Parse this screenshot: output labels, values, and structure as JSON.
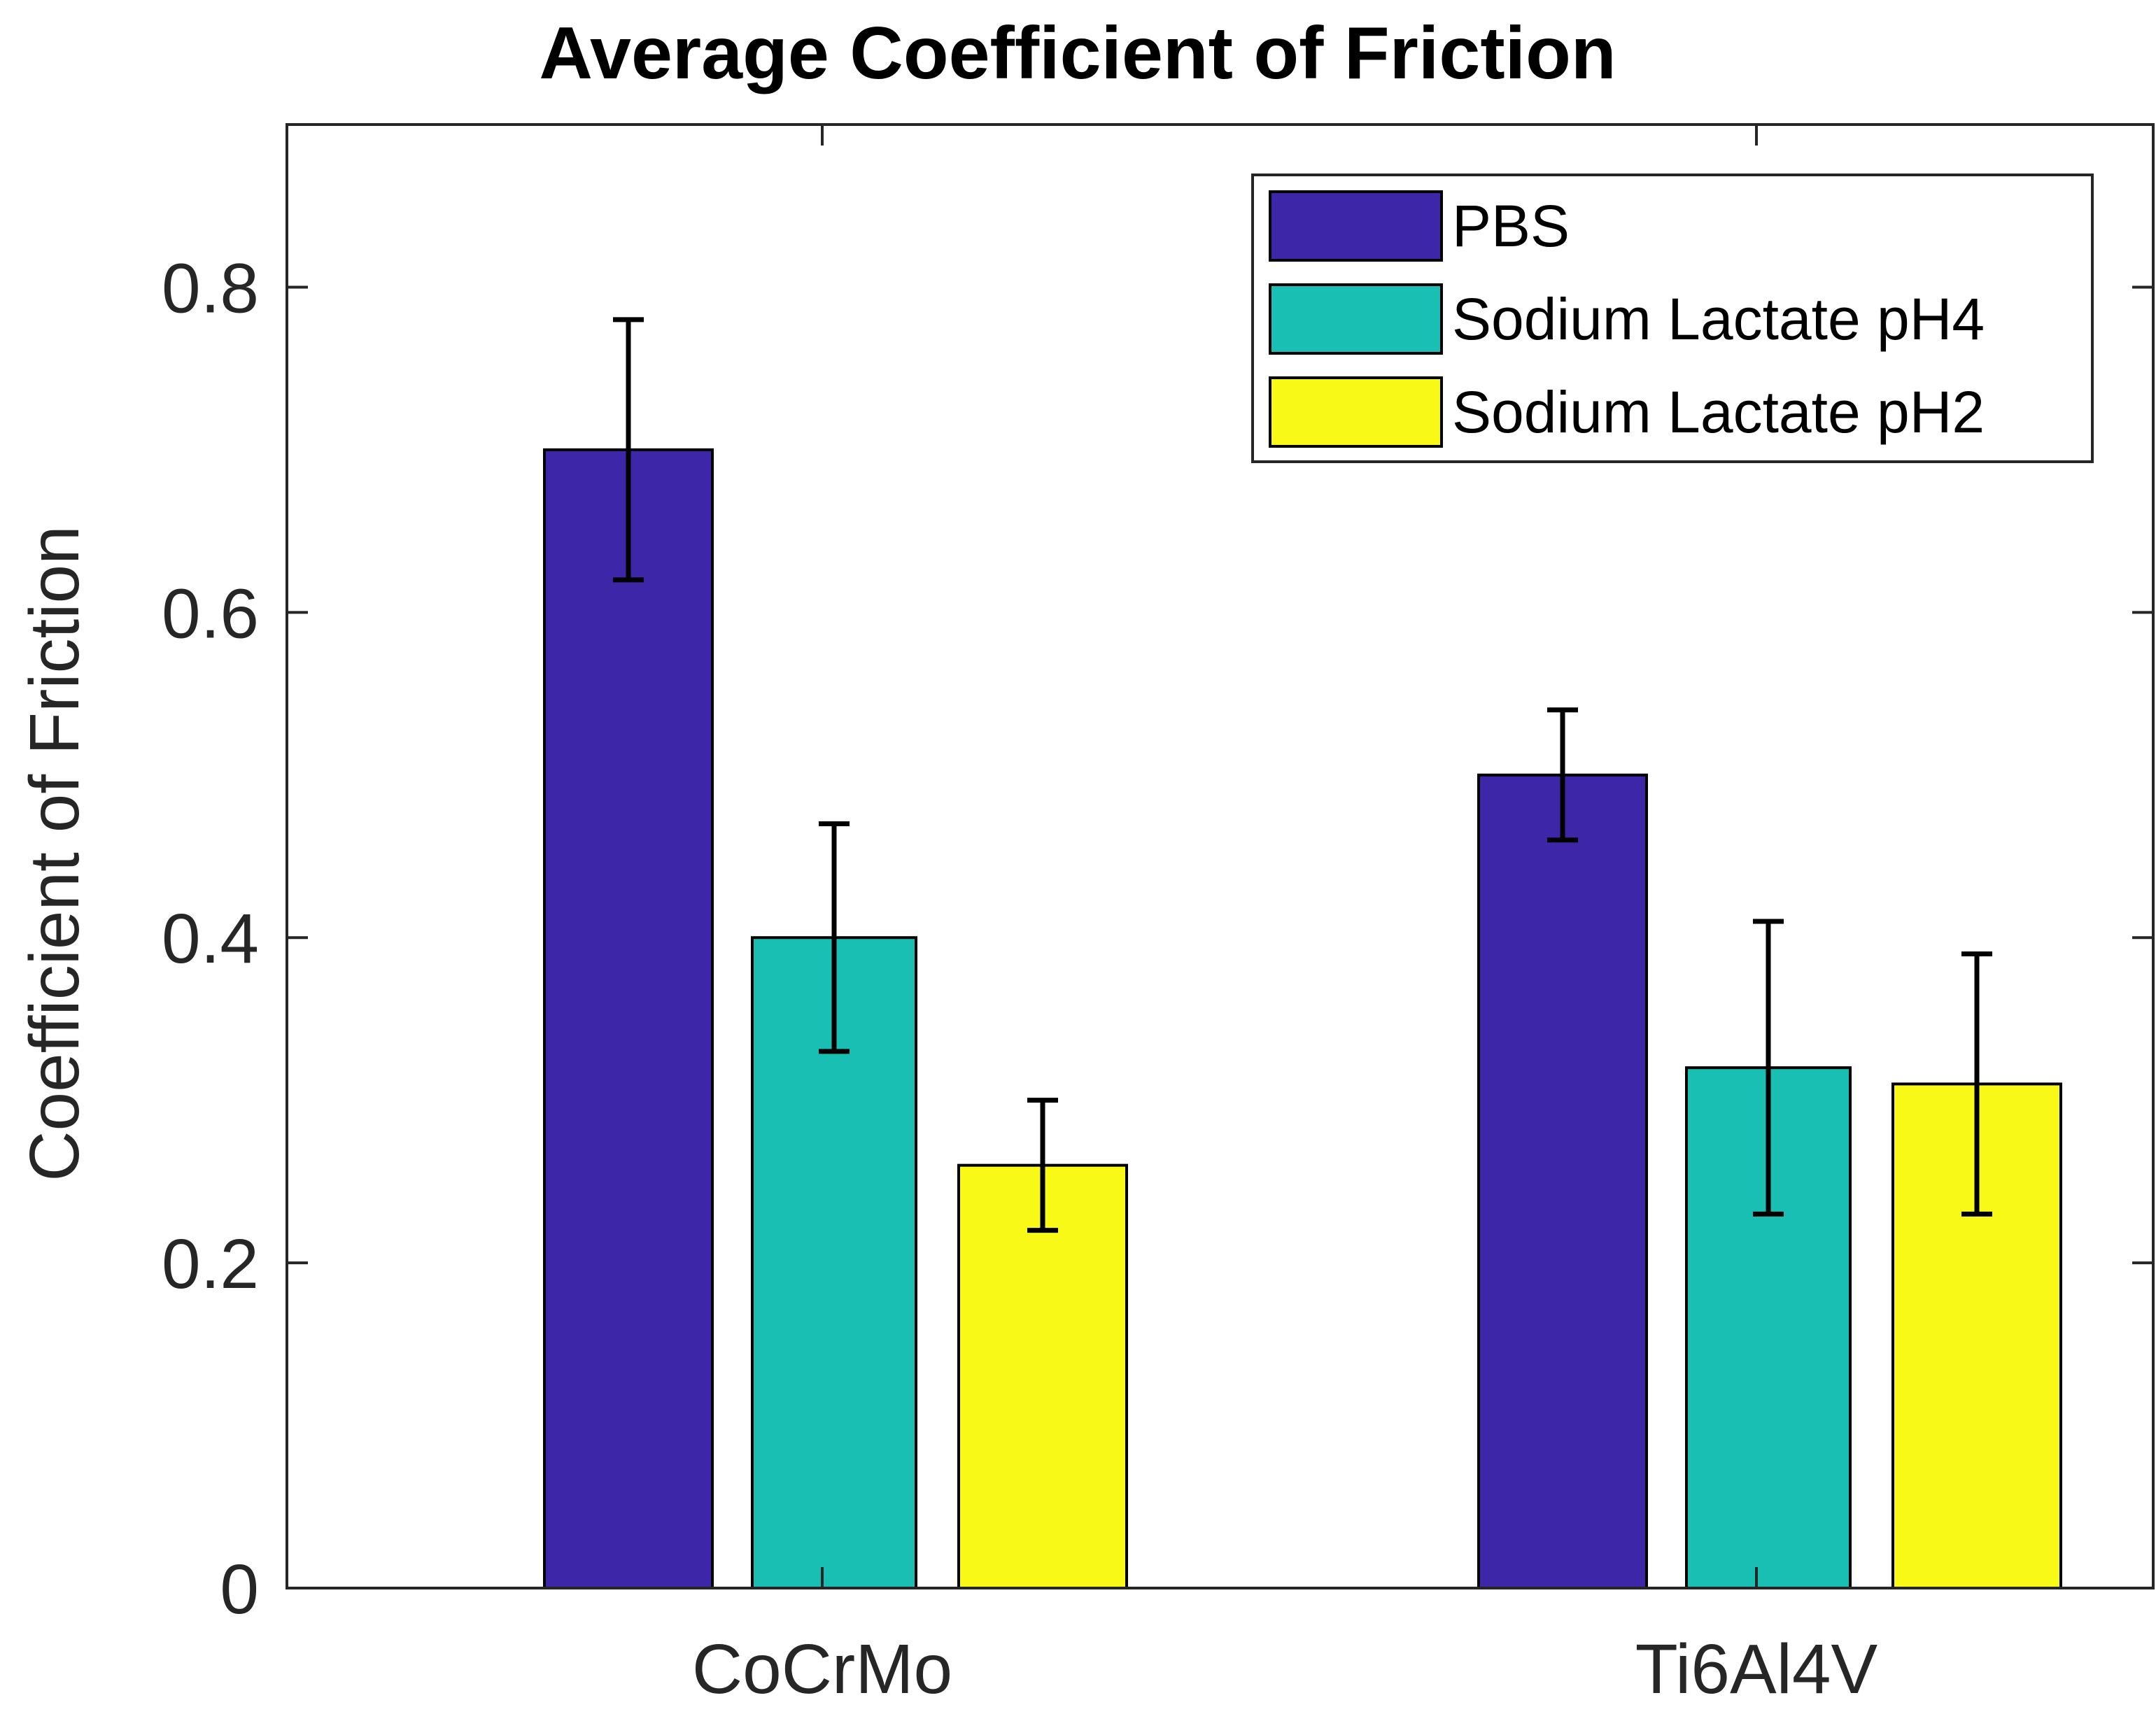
{
  "chart_data": {
    "type": "bar",
    "title": "Average Coefficient of Friction",
    "xlabel": "",
    "ylabel": "Coefficient of Friction",
    "ylim": [
      0,
      0.9
    ],
    "yticks": [
      0,
      0.2,
      0.4,
      0.6,
      0.8
    ],
    "ytick_labels": [
      "0",
      "0.2",
      "0.4",
      "0.6",
      "0.8"
    ],
    "categories": [
      "CoCrMo",
      "Ti6Al4V"
    ],
    "series": [
      {
        "name": "PBS",
        "color": "#3e26a8",
        "values": [
          0.7,
          0.5
        ],
        "errors": [
          0.08,
          0.04
        ]
      },
      {
        "name": "Sodium Lactate pH4",
        "color": "#1abfb3",
        "values": [
          0.4,
          0.32
        ],
        "errors": [
          0.07,
          0.09
        ]
      },
      {
        "name": "Sodium Lactate pH2",
        "color": "#f9f917",
        "values": [
          0.26,
          0.31
        ],
        "errors": [
          0.04,
          0.08
        ]
      }
    ],
    "legend_position": "top-right",
    "grid": false
  }
}
